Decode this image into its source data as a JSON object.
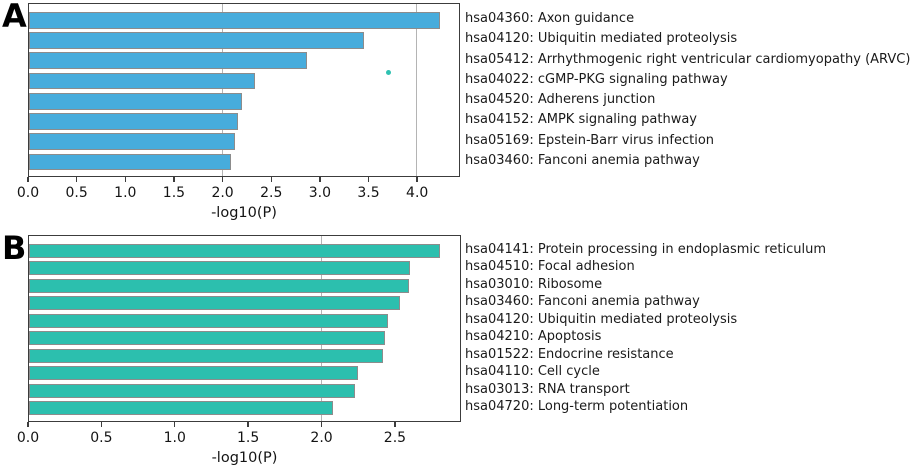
{
  "chart_data": [
    {
      "panel": "A",
      "type": "bar",
      "orientation": "horizontal",
      "xlabel": "-log10(P)",
      "xlim": [
        0,
        4.44
      ],
      "xticks": [
        "0.0",
        "0.5",
        "1.0",
        "1.5",
        "2.0",
        "2.5",
        "3.0",
        "3.5",
        "4.0"
      ],
      "gridlines_at": [
        2.0,
        4.0
      ],
      "grid_color": "#b4b4b4",
      "bar_color": "#47acdc",
      "bar_border_color": "#8c8c8c",
      "legend_position": "none",
      "categories": [
        "hsa04360: Axon guidance",
        "hsa04120: Ubiquitin mediated proteolysis",
        "hsa05412: Arrhythmogenic right ventricular cardiomyopathy (ARVC)",
        "hsa04022: cGMP-PKG signaling pathway",
        "hsa04520: Adherens junction",
        "hsa04152: AMPK signaling pathway",
        "hsa05169: Epstein-Barr virus infection",
        "hsa03460: Fanconi anemia pathway"
      ],
      "values": [
        4.24,
        3.46,
        2.87,
        2.33,
        2.2,
        2.16,
        2.13,
        2.09
      ],
      "outlier_dot": {
        "x": 3.71,
        "color": "#2fc1b1"
      }
    },
    {
      "panel": "B",
      "type": "bar",
      "orientation": "horizontal",
      "xlabel": "-log10(P)",
      "xlim": [
        0,
        2.95
      ],
      "xticks": [
        "0.0",
        "0.5",
        "1.0",
        "1.5",
        "2.0",
        "2.5"
      ],
      "gridlines_at": [
        2.0
      ],
      "grid_color": "#b4b4b4",
      "bar_color": "#2cbfae",
      "bar_border_color": "#8c8c8c",
      "legend_position": "none",
      "categories": [
        "hsa04141: Protein processing in endoplasmic reticulum",
        "hsa04510: Focal adhesion",
        "hsa03010: Ribosome",
        "hsa03460: Fanconi anemia pathway",
        "hsa04120: Ubiquitin mediated proteolysis",
        "hsa04210: Apoptosis",
        "hsa01522: Endocrine resistance",
        "hsa04110: Cell cycle",
        "hsa03013: RNA transport",
        "hsa04720: Long-term potentiation"
      ],
      "values": [
        2.81,
        2.61,
        2.6,
        2.54,
        2.46,
        2.44,
        2.42,
        2.25,
        2.23,
        2.08
      ]
    }
  ]
}
